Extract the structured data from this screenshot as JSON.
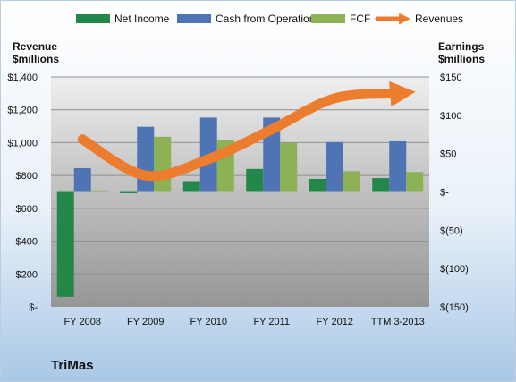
{
  "company": "TriMas",
  "left_axis_title": [
    "Revenue",
    "$millions"
  ],
  "right_axis_title": [
    "Earnings",
    "$millions"
  ],
  "colors": {
    "net_income": "#23874A",
    "cash_from_operations": "#4F74B3",
    "fcf": "#8DB255",
    "revenues": "#EC7D2F"
  },
  "chart_data": {
    "type": "bar",
    "categories": [
      "FY 2008",
      "FY 2009",
      "FY 2010",
      "FY 2011",
      "FY 2012",
      "TTM 3-2013"
    ],
    "series": [
      {
        "name": "Net Income",
        "axis": "right",
        "values": [
          -137,
          0,
          14,
          30,
          17,
          18
        ]
      },
      {
        "name": "Cash from Operations",
        "axis": "right",
        "values": [
          31,
          85,
          97,
          97,
          65,
          66
        ]
      },
      {
        "name": "FCF",
        "axis": "right",
        "values": [
          2,
          72,
          68,
          64,
          27,
          26
        ]
      },
      {
        "name": "Revenues",
        "axis": "left",
        "type": "line",
        "values": [
          1020,
          800,
          900,
          1080,
          1270,
          1300
        ]
      }
    ],
    "left_axis": {
      "ylim": [
        0,
        1400
      ],
      "ticks": [
        0,
        200,
        400,
        600,
        800,
        1000,
        1200,
        1400
      ],
      "tick_labels": [
        "$-",
        "$200",
        "$400",
        "$600",
        "$800",
        "$1,000",
        "$1,200",
        "$1,400"
      ]
    },
    "right_axis": {
      "ylim": [
        -150,
        150
      ],
      "ticks": [
        -150,
        -100,
        -50,
        0,
        50,
        100,
        150
      ],
      "tick_labels": [
        "$(150)",
        "$(100)",
        "$(50)",
        "$-",
        "$50",
        "$100",
        "$150"
      ]
    },
    "grid": true,
    "legend": "top"
  }
}
